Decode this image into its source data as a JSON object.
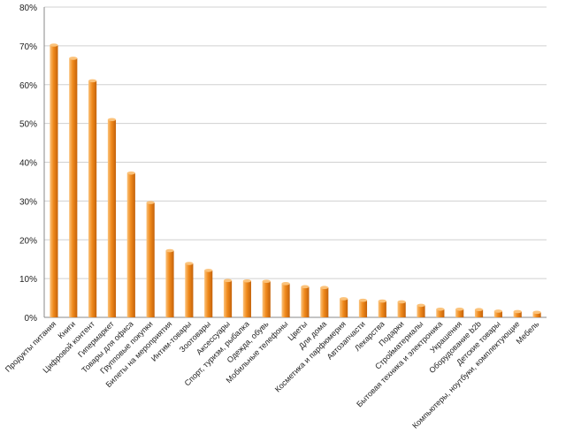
{
  "chart_data": {
    "type": "bar",
    "title": "",
    "xlabel": "",
    "ylabel": "",
    "ylim": [
      0,
      80
    ],
    "y_ticks": [
      "0%",
      "10%",
      "20%",
      "30%",
      "40%",
      "50%",
      "60%",
      "70%",
      "80%"
    ],
    "grid": "horizontal",
    "bar_color": "#f08a1c",
    "bar_color_light": "#fbc27a",
    "bar_color_dark": "#c4620a",
    "categories": [
      "Продукты питания",
      "Книги",
      "Цифровой контент",
      "Гипермаркет",
      "Товары для офиса",
      "Групповые покупки",
      "Билеты на мероприятия",
      "Интим-товары",
      "Зоотовары",
      "Аксессуары",
      "Спорт, туризм, рыбалка",
      "Одежда, обувь",
      "Мобильные телефоны",
      "Цветы",
      "Для дома",
      "Косметика и парфюмерия",
      "Автозапчасти",
      "Лекарства",
      "Подарки",
      "Стройматериалы",
      "Бытовая техника и электроника",
      "Украшения",
      "Оборудование b2b",
      "Детские товары",
      "Компьютеры, ноутбуки, комплектующие",
      "Мебель"
    ],
    "values": [
      70.2,
      66.8,
      61.0,
      51.0,
      37.2,
      29.6,
      17.2,
      13.9,
      12.1,
      9.5,
      9.4,
      9.3,
      8.7,
      7.9,
      7.7,
      4.8,
      4.4,
      4.2,
      4.0,
      3.1,
      2.1,
      2.1,
      2.0,
      1.6,
      1.5,
      1.3
    ]
  }
}
